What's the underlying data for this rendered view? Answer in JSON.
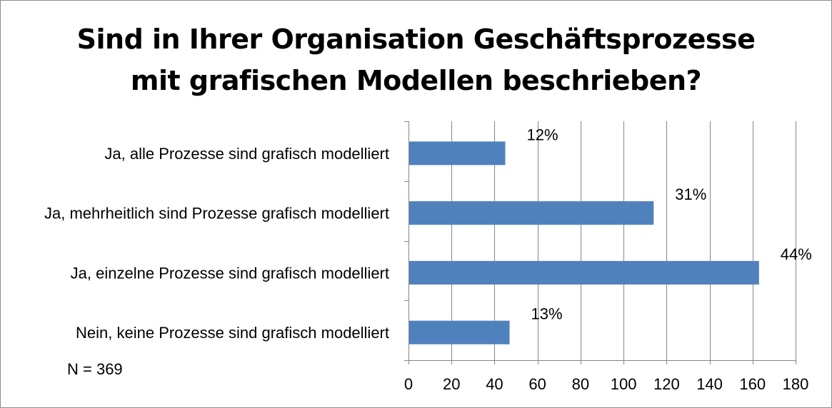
{
  "chart_data": {
    "type": "bar",
    "orientation": "horizontal",
    "title_lines": [
      "Sind in Ihrer Organisation Geschäftsprozesse",
      "mit grafischen Modellen beschrieben?"
    ],
    "categories": [
      "Ja, alle Prozesse sind grafisch modelliert",
      "Ja, mehrheitlich sind Prozesse grafisch modelliert",
      "Ja, einzelne Prozesse sind grafisch modelliert",
      "Nein, keine Prozesse sind grafisch modelliert"
    ],
    "values": [
      45,
      114,
      163,
      47
    ],
    "data_labels": [
      "12%",
      "31%",
      "44%",
      "13%"
    ],
    "xlim": [
      0,
      180
    ],
    "xticks": [
      0,
      20,
      40,
      60,
      80,
      100,
      120,
      140,
      160,
      180
    ],
    "grid": "vertical",
    "bar_color": "#4f81bd",
    "note": "N = 369"
  }
}
